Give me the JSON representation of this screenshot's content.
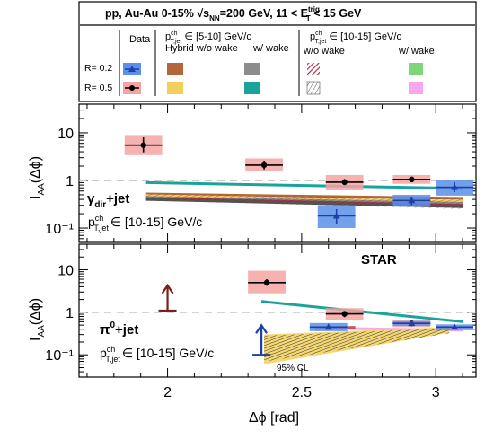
{
  "legend": {
    "header": "pp, Au-Au 0-15%   √s",
    "header_sub": "NN",
    "header_rest": "=200 GeV, 11 < E",
    "header_sup": "trig",
    "header_sub2": "T",
    "header_tail": " < 15 GeV",
    "col_data": "Data",
    "col_pt1": "p",
    "col_pt1_sup": "ch",
    "col_pt1_sub": "T,jet",
    "col_pt1_range": " ∈ [5-10] GeV/c",
    "col_pt1_hybrid": "Hybrid w/o wake",
    "col_pt1_wake": "w/ wake",
    "col_pt2_range": " ∈ [10-15] GeV/c",
    "col_pt2_nowake": "w/o wake",
    "col_pt2_wake": "w/ wake",
    "row_r02": "R= 0.2",
    "row_r05": "R= 0.5",
    "colors": {
      "data_r02": "#5b8fe8",
      "data_r05": "#f5a3a3",
      "hybrid_510_r02": "#b5653a",
      "hybrid_510_r05": "#f2cf5a",
      "wake_510_r02": "#8c8c8c",
      "wake_510_r05": "#1aa39a",
      "hybrid_1015_r02": "#a8324a",
      "hybrid_1015_r05": "#555555",
      "wake_1015_r02": "#7fd67a",
      "wake_1015_r05": "#f5a8f0"
    }
  },
  "top": {
    "label_main": "γ",
    "label_sub": "dir",
    "label_rest": "+jet",
    "pt_label": "p",
    "pt_sup": "ch",
    "pt_sub": "T,jet",
    "pt_range": "∈ [10-15] GeV/c"
  },
  "bottom": {
    "star": "STAR",
    "label_main": "π",
    "label_sup": "0",
    "label_rest": "+jet",
    "pt_label": "p",
    "pt_sup": "ch",
    "pt_sub": "T,jet",
    "pt_range": "∈ [10-15] GeV/c",
    "cl_label": "95% CL"
  },
  "axes": {
    "ylabel": "I",
    "ylabel_sub": "AA",
    "ylabel_rest": "(Δϕ)",
    "xlabel": "Δϕ [rad]",
    "x_ticks": [
      "2",
      "2.5",
      "3"
    ]
  },
  "chart_data": [
    {
      "type": "scatter",
      "panel": "top (γdir+jet)",
      "xlim": [
        1.67,
        3.15
      ],
      "ylim": [
        0.05,
        40
      ],
      "log_y": true,
      "y_ticks": [
        "10",
        "1",
        "10⁻¹"
      ],
      "reference_line": 1.0,
      "series": [
        {
          "name": "R= 0.5",
          "points": [
            {
              "x": 1.91,
              "y": 5.5,
              "yerr": [
                1.6,
                2.5
              ],
              "xerr": 0.07,
              "syst_lo": 3.4,
              "syst_hi": 9.0
            },
            {
              "x": 2.36,
              "y": 2.1,
              "yerr": [
                0.4,
                0.5
              ],
              "xerr": 0.07,
              "syst_lo": 1.55,
              "syst_hi": 2.9
            },
            {
              "x": 2.66,
              "y": 0.92,
              "yerr": [
                0.12,
                0.15
              ],
              "xerr": 0.07,
              "syst_lo": 0.62,
              "syst_hi": 1.3
            },
            {
              "x": 2.91,
              "y": 1.05,
              "yerr": [
                0.1,
                0.12
              ],
              "xerr": 0.07,
              "syst_lo": 0.85,
              "syst_hi": 1.3
            }
          ]
        },
        {
          "name": "R= 0.2",
          "points": [
            {
              "x": 2.63,
              "y": 0.18,
              "yerr": [
                0.06,
                0.07
              ],
              "xerr": 0.07,
              "syst_lo": 0.1,
              "syst_hi": 0.3
            },
            {
              "x": 2.91,
              "y": 0.38,
              "yerr": [
                0.08,
                0.08
              ],
              "xerr": 0.07,
              "syst_lo": 0.28,
              "syst_hi": 0.5
            },
            {
              "x": 3.07,
              "y": 0.72,
              "yerr": [
                0.15,
                0.2
              ],
              "xerr": 0.07,
              "syst_lo": 0.48,
              "syst_hi": 1.0
            }
          ]
        }
      ],
      "model_curves": [
        {
          "color": "#1aa39a",
          "x": [
            1.92,
            3.1
          ],
          "y": [
            0.9,
            0.68
          ]
        },
        {
          "color": "#b5653a",
          "x": [
            1.92,
            3.1
          ],
          "y": [
            0.52,
            0.42
          ]
        },
        {
          "color": "#f2cf5a",
          "x": [
            1.92,
            3.1
          ],
          "y": [
            0.48,
            0.36
          ]
        },
        {
          "color": "#8c8c8c",
          "x": [
            1.92,
            3.1
          ],
          "y": [
            0.44,
            0.33
          ]
        },
        {
          "color": "#a8324a",
          "x": [
            1.92,
            3.1
          ],
          "y": [
            0.42,
            0.3
          ]
        },
        {
          "color": "#555555",
          "x": [
            1.92,
            3.1
          ],
          "y": [
            0.4,
            0.28
          ]
        }
      ]
    },
    {
      "type": "scatter",
      "panel": "bottom (π0+jet)",
      "xlim": [
        1.67,
        3.15
      ],
      "ylim": [
        0.03,
        40
      ],
      "log_y": true,
      "y_ticks": [
        "10",
        "1",
        "10⁻¹"
      ],
      "reference_line": 1.0,
      "series": [
        {
          "name": "R= 0.5",
          "points": [
            {
              "x": 2.37,
              "y": 5.0,
              "yerr": [
                0.8,
                1.0
              ],
              "xerr": 0.07,
              "syst_lo": 2.8,
              "syst_hi": 9.5
            },
            {
              "x": 2.66,
              "y": 0.92,
              "yerr": [
                0.15,
                0.15
              ],
              "xerr": 0.07,
              "syst_lo": 0.65,
              "syst_hi": 1.25
            },
            {
              "x": 2.91,
              "y": 0.55,
              "yerr": [
                0.05,
                0.05
              ],
              "xerr": 0.07,
              "syst_lo": 0.45,
              "syst_hi": 0.66
            }
          ]
        },
        {
          "name": "R= 0.2",
          "points": [
            {
              "x": 2.6,
              "y": 0.45,
              "yerr": [
                0.05,
                0.05
              ],
              "xerr": 0.07,
              "syst_lo": 0.36,
              "syst_hi": 0.56
            },
            {
              "x": 2.91,
              "y": 0.55,
              "yerr": [
                0.05,
                0.05
              ],
              "xerr": 0.07,
              "syst_lo": 0.48,
              "syst_hi": 0.62
            },
            {
              "x": 3.07,
              "y": 0.45,
              "yerr": [
                0.05,
                0.05
              ],
              "xerr": 0.07,
              "syst_lo": 0.38,
              "syst_hi": 0.52
            }
          ]
        }
      ],
      "limits": [
        {
          "x": 2.0,
          "y": 1.1,
          "direction": "lower",
          "color": "#7a1f1f"
        },
        {
          "x": 2.35,
          "y": 0.1,
          "direction": "upper",
          "color": "#1f3fa8"
        }
      ],
      "model_curves": [
        {
          "color": "#1aa39a",
          "x": [
            2.35,
            3.1
          ],
          "y": [
            1.8,
            0.6
          ]
        },
        {
          "color": "#f5a8f0",
          "x": [
            2.6,
            3.1
          ],
          "y": [
            0.42,
            0.38
          ]
        }
      ]
    }
  ]
}
